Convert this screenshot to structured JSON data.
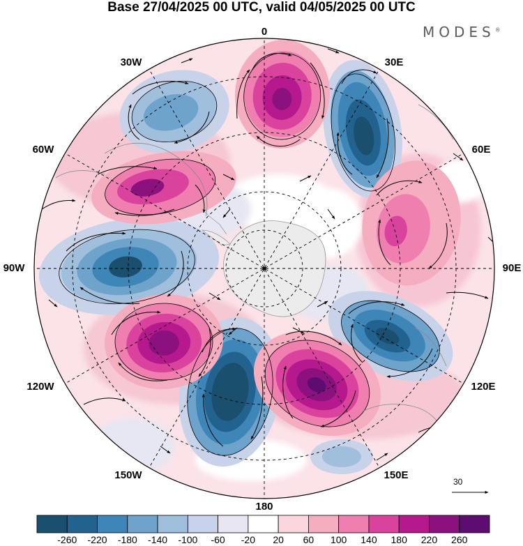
{
  "title": "Base 27/04/2025 00 UTC, valid 04/05/2025 00 UTC",
  "brand": "MODES",
  "brand_mark": "®",
  "longitude_labels": {
    "lon_0": "0",
    "lon_30e": "30E",
    "lon_60e": "60E",
    "lon_90e": "90E",
    "lon_120e": "120E",
    "lon_150e": "150E",
    "lon_180": "180",
    "lon_150w": "150W",
    "lon_120w": "120W",
    "lon_90w": "90W",
    "lon_60w": "60W",
    "lon_30w": "30W"
  },
  "reference_vector_label": "30",
  "colorbar": {
    "colors": [
      "#1a4f6e",
      "#21628f",
      "#3f86b8",
      "#6ea4cc",
      "#a0bfdd",
      "#c8d3e9",
      "#e8e6f3",
      "#ffffff",
      "#fbd6dc",
      "#f5adc0",
      "#ee7fae",
      "#d9439e",
      "#b5198d",
      "#8b117f",
      "#5d0d70"
    ],
    "labels": [
      "-260",
      "-220",
      "-180",
      "-140",
      "-100",
      "-60",
      "-20",
      "20",
      "60",
      "100",
      "140",
      "180",
      "220",
      "260"
    ]
  }
}
